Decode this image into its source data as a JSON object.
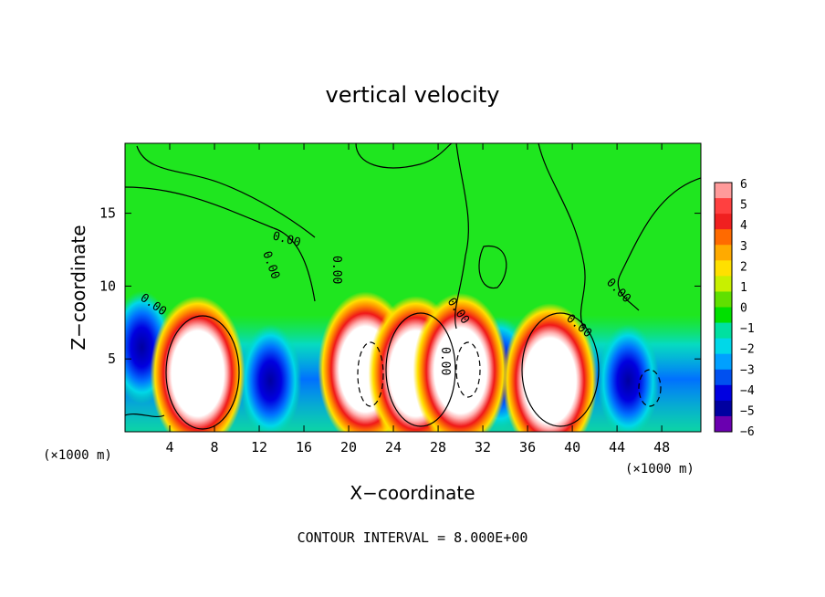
{
  "chart_data": {
    "type": "heatmap",
    "title": "vertical velocity",
    "xlabel": "X−coordinate",
    "ylabel": "Z−coordinate",
    "x_unit": "(×1000 m)",
    "x_ticks": [
      4,
      8,
      12,
      16,
      20,
      24,
      28,
      32,
      36,
      40,
      44,
      48
    ],
    "y_ticks": [
      5,
      10,
      15
    ],
    "xlim": [
      0,
      51.5
    ],
    "ylim": [
      0,
      19.8
    ],
    "colorbar": {
      "ticks": [
        6,
        5,
        4,
        3,
        2,
        1,
        0,
        -1,
        -2,
        -3,
        -4,
        -5,
        -6
      ],
      "tick_labels": [
        "6",
        "5",
        "4",
        "3",
        "2",
        "1",
        "0",
        "−1",
        "−2",
        "−3",
        "−4",
        "−5",
        "−6"
      ],
      "colors": [
        "#ff9a9a",
        "#ff4040",
        "#f02020",
        "#ff6a00",
        "#ffaa00",
        "#ffe000",
        "#c8f000",
        "#60e000",
        "#00e000",
        "#00e0a0",
        "#00d8e8",
        "#00a0ff",
        "#0050f0",
        "#0000e0",
        "#0000a0",
        "#6a00b0"
      ]
    },
    "contour_label": "0.00",
    "contour_interval_text": "CONTOUR INTERVAL = 8.000E+00",
    "background_color": "#1fe61f",
    "updrafts": [
      {
        "x": 6.5,
        "z": 4.0
      },
      {
        "x": 21.5,
        "z": 4.3
      },
      {
        "x": 26.0,
        "z": 4.0
      },
      {
        "x": 30.0,
        "z": 4.2
      },
      {
        "x": 38.0,
        "z": 3.5
      }
    ],
    "downdrafts": [
      {
        "x": 1.5,
        "z": 5.8
      },
      {
        "x": 13.0,
        "z": 3.5
      },
      {
        "x": 23.0,
        "z": 3.5
      },
      {
        "x": 33.5,
        "z": 4.0
      },
      {
        "x": 45.0,
        "z": 3.5
      }
    ]
  }
}
